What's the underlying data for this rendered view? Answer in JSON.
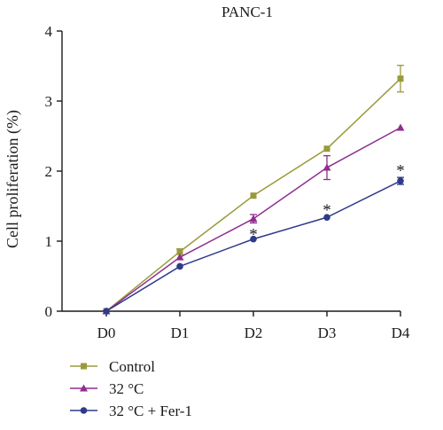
{
  "chart_data": {
    "type": "line",
    "title": "PANC-1",
    "xlabel": "",
    "ylabel": "Cell proliferation (%)",
    "categories": [
      "D0",
      "D1",
      "D2",
      "D3",
      "D4"
    ],
    "ylim": [
      0,
      4
    ],
    "yticks": [
      0,
      1,
      2,
      3,
      4
    ],
    "grid": false,
    "legend_position": "bottom-left",
    "series": [
      {
        "name": "Control",
        "color": "#9a9a3a",
        "marker": "square",
        "values": [
          0.0,
          0.85,
          1.65,
          2.32,
          3.32
        ],
        "errors": [
          0.0,
          0.04,
          0.02,
          0.02,
          0.19
        ]
      },
      {
        "name": "32 °C",
        "color": "#8e2e8e",
        "marker": "triangle",
        "values": [
          0.0,
          0.77,
          1.32,
          2.05,
          2.62
        ],
        "errors": [
          0.0,
          0.02,
          0.06,
          0.17,
          0.02
        ]
      },
      {
        "name": "32 °C + Fer-1",
        "color": "#2f3a8a",
        "marker": "circle",
        "values": [
          0.0,
          0.64,
          1.03,
          1.34,
          1.86
        ],
        "errors": [
          0.0,
          0.01,
          0.01,
          0.01,
          0.05
        ]
      }
    ],
    "annotations": [
      {
        "category": "D2",
        "y": 1.12,
        "text": "*"
      },
      {
        "category": "D3",
        "y": 1.47,
        "text": "*"
      },
      {
        "category": "D4",
        "y": 2.03,
        "text": "*"
      }
    ]
  }
}
